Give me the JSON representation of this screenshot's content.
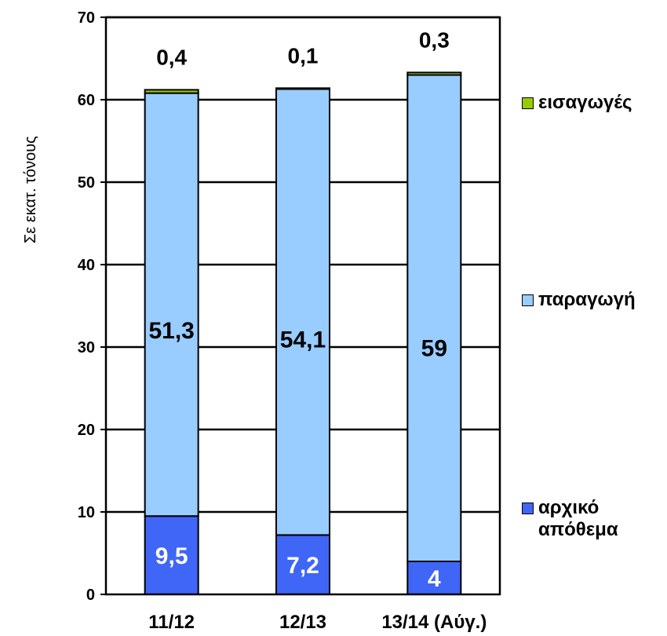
{
  "chart_data": {
    "type": "bar",
    "stacked": true,
    "categories": [
      "11/12",
      "12/13",
      "13/14 (Αύγ.)"
    ],
    "series": [
      {
        "name": "αρχικό απόθεμα",
        "values": [
          9.5,
          7.2,
          4
        ],
        "labels": [
          "9,5",
          "7,2",
          "4"
        ],
        "color": "#3f66f6",
        "label_color": "#ffffff"
      },
      {
        "name": "παραγωγή",
        "values": [
          51.3,
          54.1,
          59
        ],
        "labels": [
          "51,3",
          "54,1",
          "59"
        ],
        "color": "#99ccff",
        "label_color": "#000000"
      },
      {
        "name": "εισαγωγές",
        "values": [
          0.4,
          0.1,
          0.3
        ],
        "labels": [
          "0,4",
          "0,1",
          "0,3"
        ],
        "color": "#99cc00",
        "label_color": "#000000"
      }
    ],
    "ylabel": "Σε εκατ. τόνους",
    "ylim": [
      0,
      70
    ],
    "yticks": [
      0,
      10,
      20,
      30,
      40,
      50,
      60,
      70
    ],
    "grid": true,
    "legend_position": "right"
  }
}
